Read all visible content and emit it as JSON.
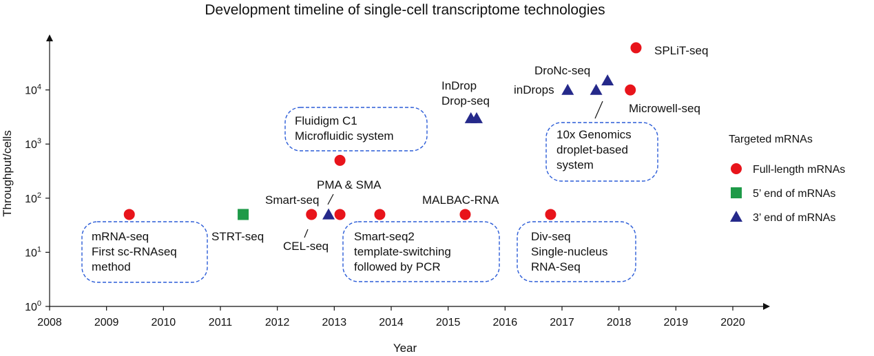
{
  "chart_data": {
    "type": "scatter",
    "title": "Development timeline of single-cell transcriptome technologies",
    "xlabel": "Year",
    "ylabel": "Throughput/cells",
    "xlim": [
      2008,
      2020
    ],
    "ylim_log10": [
      0,
      5
    ],
    "y_scale": "log",
    "x_ticks": [
      "2008",
      "2009",
      "2010",
      "2011",
      "2012",
      "2013",
      "2014",
      "2015",
      "2016",
      "2017",
      "2018",
      "2019",
      "2020"
    ],
    "y_ticks": [
      {
        "base": "10",
        "exp": "0",
        "value": 1
      },
      {
        "base": "10",
        "exp": "1",
        "value": 10
      },
      {
        "base": "10",
        "exp": "2",
        "value": 100
      },
      {
        "base": "10",
        "exp": "3",
        "value": 1000
      },
      {
        "base": "10",
        "exp": "4",
        "value": 10000
      }
    ],
    "grid": false,
    "legend": {
      "title": "Targeted mRNAs",
      "placement": "right",
      "items": [
        {
          "label": "Full-length mRNAs",
          "shape": "circle",
          "color": "#e8141b"
        },
        {
          "label": "5’ end of mRNAs",
          "shape": "square",
          "color": "#1e9a48"
        },
        {
          "label": "3’ end of mRNAs",
          "shape": "triangle",
          "color": "#25298a"
        }
      ]
    },
    "series": [
      {
        "name": "Full-length mRNAs",
        "shape": "circle",
        "color": "#e8141b",
        "points": [
          {
            "x": 2009.4,
            "y": 50
          },
          {
            "x": 2012.6,
            "y": 50
          },
          {
            "x": 2013.1,
            "y": 50
          },
          {
            "x": 2013.1,
            "y": 500
          },
          {
            "x": 2013.8,
            "y": 50
          },
          {
            "x": 2015.3,
            "y": 50
          },
          {
            "x": 2016.8,
            "y": 50
          },
          {
            "x": 2018.2,
            "y": 10000
          },
          {
            "x": 2018.3,
            "y": 60000
          }
        ]
      },
      {
        "name": "5’ end of mRNAs",
        "shape": "square",
        "color": "#1e9a48",
        "points": [
          {
            "x": 2011.4,
            "y": 50
          }
        ]
      },
      {
        "name": "3’ end of mRNAs",
        "shape": "triangle",
        "color": "#25298a",
        "points": [
          {
            "x": 2012.9,
            "y": 50
          },
          {
            "x": 2015.4,
            "y": 3000
          },
          {
            "x": 2015.5,
            "y": 3000
          },
          {
            "x": 2017.1,
            "y": 10000
          },
          {
            "x": 2017.6,
            "y": 10000
          },
          {
            "x": 2017.8,
            "y": 15000
          }
        ]
      }
    ],
    "annotations": [
      {
        "id": "mrna-seq",
        "lines": [
          "mRNA-seq",
          "First sc-RNAseq",
          "method"
        ],
        "boxed": true
      },
      {
        "id": "strt-seq",
        "lines": [
          "STRT-seq"
        ],
        "boxed": false
      },
      {
        "id": "smart-seq",
        "lines": [
          "Smart-seq"
        ],
        "boxed": false
      },
      {
        "id": "cel-seq",
        "lines": [
          "CEL-seq"
        ],
        "boxed": false
      },
      {
        "id": "pma-sma",
        "lines": [
          "PMA & SMA"
        ],
        "boxed": false
      },
      {
        "id": "fluidigm",
        "lines": [
          "Fluidigm C1",
          "Microfluidic system"
        ],
        "boxed": true
      },
      {
        "id": "smart-seq2",
        "lines": [
          "Smart-seq2",
          "template-switching",
          "followed by PCR"
        ],
        "boxed": true
      },
      {
        "id": "malbac",
        "lines": [
          "MALBAC-RNA"
        ],
        "boxed": false
      },
      {
        "id": "indrop",
        "lines": [
          "InDrop",
          "Drop-seq"
        ],
        "boxed": false
      },
      {
        "id": "div-seq",
        "lines": [
          "Div-seq",
          "Single-nucleus",
          "RNA-Seq"
        ],
        "boxed": true
      },
      {
        "id": "dronc",
        "lines": [
          "DroNc-seq"
        ],
        "boxed": false
      },
      {
        "id": "indrops",
        "lines": [
          "inDrops"
        ],
        "boxed": false
      },
      {
        "id": "tenx",
        "lines": [
          "10x Genomics",
          "droplet-based",
          "system"
        ],
        "boxed": true
      },
      {
        "id": "microwell",
        "lines": [
          "Microwell-seq"
        ],
        "boxed": false
      },
      {
        "id": "split",
        "lines": [
          "SPLiT-seq"
        ],
        "boxed": false
      }
    ]
  }
}
